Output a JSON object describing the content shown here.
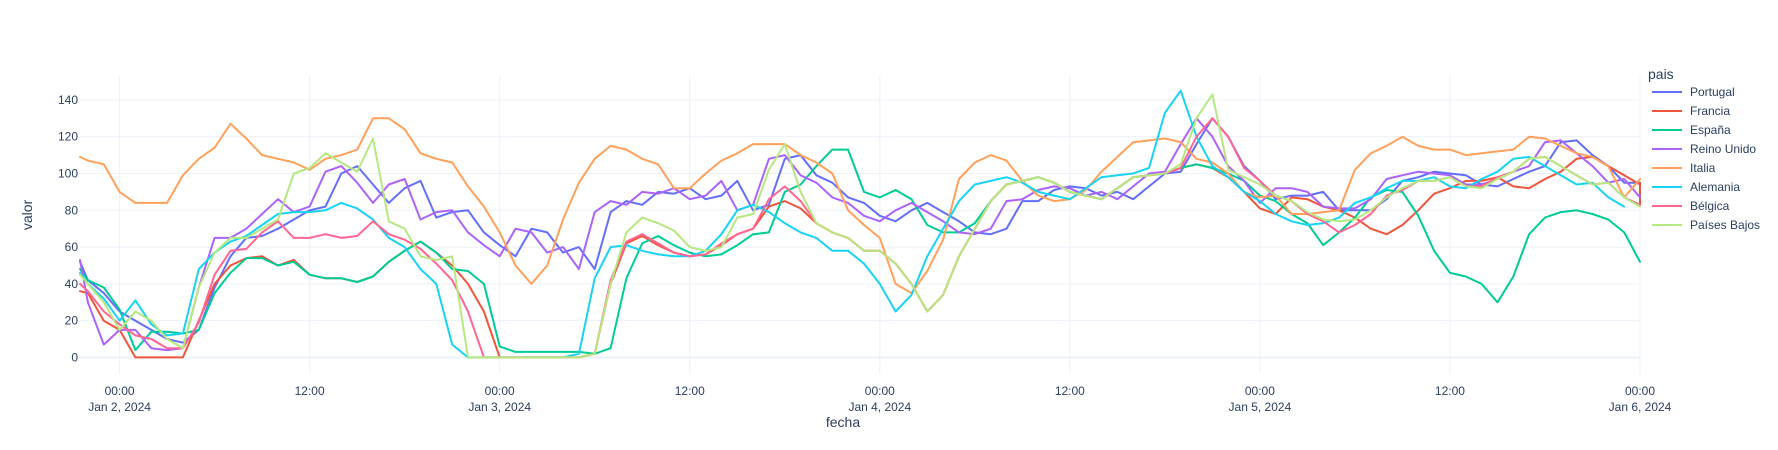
{
  "chart_data": {
    "type": "line",
    "xlabel": "fecha",
    "ylabel": "valor",
    "legend_title": "pais",
    "legend_position": "right",
    "grid": true,
    "x_start": "2024-01-01 21:00",
    "x_step_hours": 1,
    "x_range": [
      "2024-01-01 21:30",
      "2024-01-06 00:00"
    ],
    "ylim": [
      -9,
      153
    ],
    "y_ticks": [
      0,
      20,
      40,
      60,
      80,
      100,
      120,
      140
    ],
    "x_ticks": [
      {
        "time": "2024-01-02 00:00",
        "line1": "00:00",
        "line2": "Jan 2, 2024"
      },
      {
        "time": "2024-01-02 12:00",
        "line1": "12:00",
        "line2": ""
      },
      {
        "time": "2024-01-03 00:00",
        "line1": "00:00",
        "line2": "Jan 3, 2024"
      },
      {
        "time": "2024-01-03 12:00",
        "line1": "12:00",
        "line2": ""
      },
      {
        "time": "2024-01-04 00:00",
        "line1": "00:00",
        "line2": "Jan 4, 2024"
      },
      {
        "time": "2024-01-04 12:00",
        "line1": "12:00",
        "line2": ""
      },
      {
        "time": "2024-01-05 00:00",
        "line1": "00:00",
        "line2": "Jan 5, 2024"
      },
      {
        "time": "2024-01-05 12:00",
        "line1": "12:00",
        "line2": ""
      },
      {
        "time": "2024-01-06 00:00",
        "line1": "00:00",
        "line2": "Jan 6, 2024"
      }
    ],
    "series": [
      {
        "name": "Portugal",
        "color": "#636efa",
        "values": [
          52,
          42,
          35,
          25,
          20,
          15,
          10,
          8,
          15,
          38,
          55,
          65,
          66,
          70,
          75,
          80,
          82,
          100,
          104,
          94,
          84,
          92,
          96,
          76,
          79,
          80,
          68,
          61,
          55,
          70,
          68,
          57,
          60,
          48,
          79,
          85,
          83,
          90,
          89,
          92,
          86,
          88,
          96,
          80,
          83,
          108,
          110,
          99,
          95,
          87,
          84,
          77,
          74,
          80,
          84,
          79,
          74,
          68,
          67,
          70,
          85,
          85,
          91,
          93,
          92,
          88,
          90,
          86,
          93,
          100,
          101,
          116,
          130,
          120,
          104,
          96,
          86,
          88,
          88,
          90,
          80,
          80,
          80,
          86,
          96,
          98,
          101,
          100,
          99,
          94,
          93,
          97,
          101,
          104,
          117,
          118,
          110,
          104,
          95,
          95,
          87,
          88
        ]
      },
      {
        "name": "Francia",
        "color": "#EF553B",
        "values": [
          36,
          35,
          20,
          15,
          0,
          0,
          0,
          0,
          20,
          40,
          50,
          54,
          55,
          50,
          53,
          45,
          43,
          43,
          41,
          44,
          52,
          58,
          63,
          57,
          50,
          40,
          25,
          0,
          0,
          0,
          0,
          0,
          0,
          2,
          40,
          62,
          66,
          61,
          57,
          55,
          56,
          61,
          67,
          70,
          82,
          85,
          81,
          73,
          68,
          65,
          58,
          58,
          51,
          40,
          25,
          34,
          55,
          70,
          85,
          94,
          96,
          98,
          95,
          90,
          88,
          86,
          92,
          98,
          99,
          100,
          103,
          105,
          103,
          98,
          90,
          81,
          78,
          87,
          86,
          82,
          80,
          76,
          70,
          67,
          72,
          80,
          89,
          92,
          96,
          96,
          98,
          93,
          92,
          97,
          101,
          108,
          109,
          104,
          99,
          94,
          95,
          87,
          83
        ]
      },
      {
        "name": "España",
        "color": "#00cc96",
        "values": [
          48,
          42,
          38,
          26,
          4,
          14,
          14,
          13,
          15,
          35,
          46,
          54,
          54,
          50,
          52,
          45,
          43,
          43,
          41,
          44,
          52,
          58,
          63,
          57,
          48,
          47,
          40,
          6,
          3,
          3,
          3,
          3,
          3,
          2,
          5,
          43,
          62,
          66,
          61,
          57,
          55,
          56,
          61,
          67,
          68,
          90,
          94,
          104,
          113,
          113,
          90,
          87,
          91,
          86,
          72,
          68,
          68,
          73,
          85,
          94,
          96,
          98,
          95,
          90,
          88,
          86,
          92,
          98,
          99,
          100,
          103,
          105,
          103,
          100,
          96,
          88,
          85,
          78,
          73,
          61,
          68,
          76,
          87,
          91,
          90,
          77,
          58,
          46,
          44,
          40,
          30,
          44,
          67,
          76,
          79,
          80,
          78,
          75,
          68,
          52
        ]
      },
      {
        "name": "Reino Unido",
        "color": "#ab63fa",
        "values": [
          53,
          30,
          7,
          15,
          15,
          5,
          4,
          5,
          38,
          65,
          65,
          70,
          78,
          86,
          79,
          82,
          101,
          104,
          95,
          84,
          94,
          97,
          75,
          79,
          80,
          68,
          61,
          55,
          70,
          68,
          57,
          60,
          48,
          79,
          85,
          83,
          90,
          89,
          92,
          86,
          88,
          96,
          80,
          83,
          108,
          110,
          99,
          95,
          87,
          84,
          77,
          74,
          80,
          84,
          79,
          74,
          68,
          67,
          70,
          85,
          86,
          91,
          93,
          92,
          88,
          90,
          86,
          93,
          100,
          101,
          116,
          130,
          120,
          104,
          96,
          84,
          92,
          92,
          90,
          82,
          81,
          81,
          86,
          97,
          99,
          101,
          100,
          99,
          94,
          94,
          97,
          101,
          104,
          117,
          118,
          111,
          104,
          95,
          97,
          87,
          88
        ]
      },
      {
        "name": "Italia",
        "color": "#FFA15A",
        "values": [
          109,
          107,
          105,
          90,
          84,
          84,
          84,
          99,
          108,
          114,
          127,
          119,
          110,
          108,
          106,
          102,
          108,
          110,
          113,
          130,
          130,
          124,
          111,
          108,
          106,
          93,
          82,
          68,
          50,
          40,
          50,
          75,
          95,
          108,
          115,
          113,
          108,
          105,
          92,
          92,
          100,
          107,
          111,
          116,
          116,
          116,
          110,
          106,
          100,
          80,
          72,
          65,
          40,
          35,
          47,
          64,
          97,
          106,
          110,
          107,
          96,
          88,
          85,
          86,
          91,
          101,
          109,
          117,
          118,
          119,
          117,
          108,
          106,
          100,
          90,
          87,
          88,
          78,
          78,
          79,
          80,
          102,
          111,
          115,
          120,
          115,
          113,
          113,
          110,
          111,
          112,
          113,
          120,
          119,
          115,
          111,
          109,
          104,
          87,
          97
        ]
      },
      {
        "name": "Alemania",
        "color": "#19d3f3",
        "values": [
          46,
          40,
          32,
          20,
          31,
          18,
          12,
          13,
          48,
          57,
          63,
          66,
          72,
          78,
          79,
          79,
          80,
          84,
          81,
          75,
          65,
          60,
          48,
          40,
          7,
          0,
          0,
          0,
          0,
          0,
          0,
          0,
          2,
          43,
          60,
          61,
          58,
          56,
          55,
          55,
          58,
          67,
          80,
          83,
          79,
          73,
          68,
          65,
          58,
          58,
          51,
          40,
          25,
          34,
          55,
          70,
          85,
          94,
          96,
          98,
          95,
          90,
          88,
          86,
          92,
          98,
          99,
          100,
          103,
          133,
          145,
          120,
          104,
          98,
          90,
          85,
          78,
          74,
          72,
          73,
          76,
          84,
          87,
          92,
          96,
          96,
          98,
          93,
          92,
          97,
          101,
          108,
          109,
          104,
          99,
          94,
          95,
          87,
          82
        ]
      },
      {
        "name": "Bélgica",
        "color": "#FF6692",
        "values": [
          40,
          36,
          25,
          18,
          12,
          10,
          5,
          5,
          19,
          45,
          58,
          59,
          68,
          74,
          65,
          65,
          67,
          65,
          66,
          74,
          67,
          64,
          59,
          51,
          42,
          25,
          0,
          0,
          0,
          0,
          0,
          0,
          0,
          2,
          42,
          63,
          67,
          62,
          57,
          55,
          56,
          62,
          67,
          70,
          86,
          93,
          85,
          73,
          68,
          65,
          58,
          58,
          51,
          40,
          25,
          34,
          55,
          70,
          85,
          94,
          96,
          98,
          95,
          90,
          88,
          86,
          92,
          98,
          99,
          100,
          103,
          120,
          130,
          120,
          103,
          96,
          88,
          85,
          78,
          74,
          68,
          72,
          78,
          88,
          91,
          96,
          96,
          98,
          93,
          93,
          98,
          101,
          108,
          109,
          104,
          99,
          94,
          95,
          87,
          83
        ]
      },
      {
        "name": "Países Bajos",
        "color": "#B6E880",
        "values": [
          45,
          40,
          30,
          15,
          25,
          20,
          10,
          5,
          38,
          57,
          65,
          65,
          70,
          75,
          100,
          103,
          111,
          106,
          101,
          119,
          74,
          70,
          55,
          53,
          55,
          0,
          0,
          0,
          0,
          0,
          0,
          0,
          0,
          2,
          40,
          68,
          76,
          73,
          69,
          60,
          58,
          60,
          76,
          78,
          102,
          116,
          90,
          73,
          68,
          65,
          58,
          58,
          51,
          40,
          25,
          34,
          55,
          70,
          85,
          94,
          96,
          98,
          95,
          90,
          88,
          86,
          92,
          98,
          99,
          100,
          105,
          130,
          143,
          102,
          98,
          94,
          88,
          85,
          79,
          75,
          74,
          75,
          80,
          87,
          92,
          96,
          96,
          98,
          93,
          92,
          97,
          101,
          108,
          109,
          104,
          99,
          94,
          95,
          87,
          82
        ]
      }
    ]
  }
}
